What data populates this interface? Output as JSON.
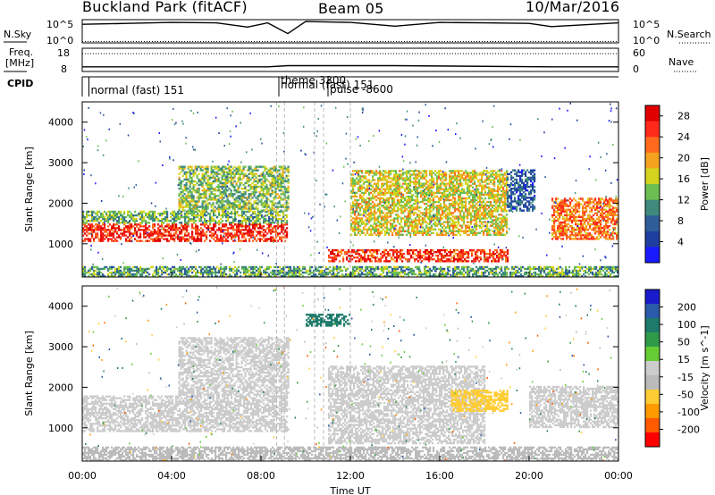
{
  "header": {
    "station": "Buckland Park (fitACF)",
    "beam": "Beam 05",
    "date": "10/Mar/2016"
  },
  "side_labels": {
    "nsky": "N.Sky",
    "freq_line1": "Freq.",
    "freq_line2": "[MHz]",
    "cpid": "CPID",
    "nsearch": "N.Search",
    "nave": "Nave"
  },
  "x_axis": {
    "label": "Time UT",
    "ticks": [
      "00:00",
      "04:00",
      "08:00",
      "12:00",
      "16:00",
      "20:00",
      "00:00"
    ]
  },
  "colors": {
    "power": [
      "#1a1aff",
      "#1e3fa0",
      "#2f5d99",
      "#3f8a7c",
      "#6ebf52",
      "#d4d41e",
      "#f5a21e",
      "#ff6a1e",
      "#ff2a1a",
      "#e00000"
    ],
    "velocity": [
      "#ff0000",
      "#ff5a00",
      "#ff9a00",
      "#ffcc33",
      "#bbbbbb",
      "#cccccc",
      "#66cc33",
      "#2f9a4a",
      "#1e7a6a",
      "#2a5aaa",
      "#1a1acc"
    ]
  },
  "chart_data": [
    {
      "type": "line",
      "title": "N.Sky / N.Search",
      "left_ticks": [
        "10^5",
        "10^0"
      ],
      "right_ticks": [
        "10^5",
        "10^0"
      ],
      "ylabel_left": "N.Sky",
      "ylabel_right": "N.Search",
      "xlim": [
        0,
        24
      ],
      "ylim_log10": [
        0,
        5
      ],
      "series": [
        {
          "name": "N.Sky",
          "x": [
            0,
            2,
            4,
            6,
            7.4,
            8.3,
            9.2,
            10,
            12,
            14,
            16,
            18,
            20,
            21,
            24
          ],
          "y": [
            4.0,
            4.2,
            4.4,
            4.3,
            3.4,
            4.3,
            2.0,
            4.6,
            4.4,
            3.6,
            4.4,
            4.3,
            4.2,
            3.5,
            4.3
          ]
        }
      ]
    },
    {
      "type": "line",
      "title": "Freq. / Nave",
      "left_ticks": [
        "18",
        "8"
      ],
      "right_ticks": [
        "60",
        "0"
      ],
      "ylabel_left": "Freq. [MHz]",
      "ylabel_right": "Nave",
      "xlim": [
        0,
        24
      ],
      "ylim_left": [
        8,
        18
      ],
      "ylim_right": [
        0,
        60
      ],
      "series": [
        {
          "name": "Freq.",
          "x": [
            0,
            7.4,
            8.3,
            9.2,
            12,
            14,
            21,
            24
          ],
          "y": [
            10,
            10,
            10,
            10.5,
            10.5,
            10.5,
            10,
            10
          ]
        }
      ]
    },
    {
      "type": "table",
      "title": "CPID",
      "labels": [
        "normal (fast) 151",
        "theme 3300",
        "normal (fast) 151",
        "pulse -8600"
      ],
      "label_hours": [
        0.3,
        8.8,
        8.8,
        11
      ]
    },
    {
      "type": "heatmap",
      "title": "Power",
      "xlabel": "Time UT",
      "ylabel": "Slant Range [km]",
      "xlim": [
        0,
        24
      ],
      "ylim": [
        180,
        4500
      ],
      "yticks": [
        1000,
        2000,
        3000,
        4000
      ],
      "colorbar": {
        "label": "Power [dB]",
        "ticks": [
          4,
          8,
          12,
          16,
          20,
          24,
          28
        ],
        "range": [
          0,
          30
        ]
      },
      "features": [
        {
          "hours": [
            0,
            9.2
          ],
          "range_km": [
            1050,
            1500
          ],
          "value_db": 26
        },
        {
          "hours": [
            0,
            9.2
          ],
          "range_km": [
            1500,
            1800
          ],
          "value_db": 13
        },
        {
          "hours": [
            4.3,
            9.2
          ],
          "range_km": [
            1800,
            2900
          ],
          "value_db": 14
        },
        {
          "hours": [
            11,
            19
          ],
          "range_km": [
            550,
            850
          ],
          "value_db": 25
        },
        {
          "hours": [
            12,
            19
          ],
          "range_km": [
            1200,
            2800
          ],
          "value_db": 17
        },
        {
          "hours": [
            19,
            20.2
          ],
          "range_km": [
            1800,
            2800
          ],
          "value_db": 7
        },
        {
          "hours": [
            21,
            24
          ],
          "range_km": [
            1100,
            2100
          ],
          "value_db": 22
        },
        {
          "hours": [
            0,
            24
          ],
          "range_km": [
            180,
            450
          ],
          "value_db": 12
        }
      ]
    },
    {
      "type": "heatmap",
      "title": "Velocity",
      "xlabel": "Time UT",
      "ylabel": "Slant Range [km]",
      "xlim": [
        0,
        24
      ],
      "ylim": [
        180,
        4500
      ],
      "yticks": [
        1000,
        2000,
        3000,
        4000
      ],
      "colorbar": {
        "label": "Velocity [m s^-1]",
        "ticks": [
          200,
          100,
          50,
          15,
          -15,
          -50,
          -100,
          -200
        ],
        "range": [
          -250,
          250
        ]
      },
      "features": [
        {
          "hours": [
            0,
            9.2
          ],
          "range_km": [
            900,
            1800
          ],
          "value_ms": 0
        },
        {
          "hours": [
            4.3,
            9.2
          ],
          "range_km": [
            1800,
            3200
          ],
          "value_ms": 10
        },
        {
          "hours": [
            11,
            18
          ],
          "range_km": [
            600,
            2500
          ],
          "value_ms": 0
        },
        {
          "hours": [
            16.5,
            19
          ],
          "range_km": [
            1400,
            1900
          ],
          "value_ms": -80
        },
        {
          "hours": [
            10,
            12
          ],
          "range_km": [
            3500,
            3800
          ],
          "value_ms": 150
        },
        {
          "hours": [
            0,
            24
          ],
          "range_km": [
            180,
            500
          ],
          "value_ms": -60
        },
        {
          "hours": [
            20,
            24
          ],
          "range_km": [
            1000,
            2000
          ],
          "value_ms": 5
        }
      ]
    }
  ]
}
